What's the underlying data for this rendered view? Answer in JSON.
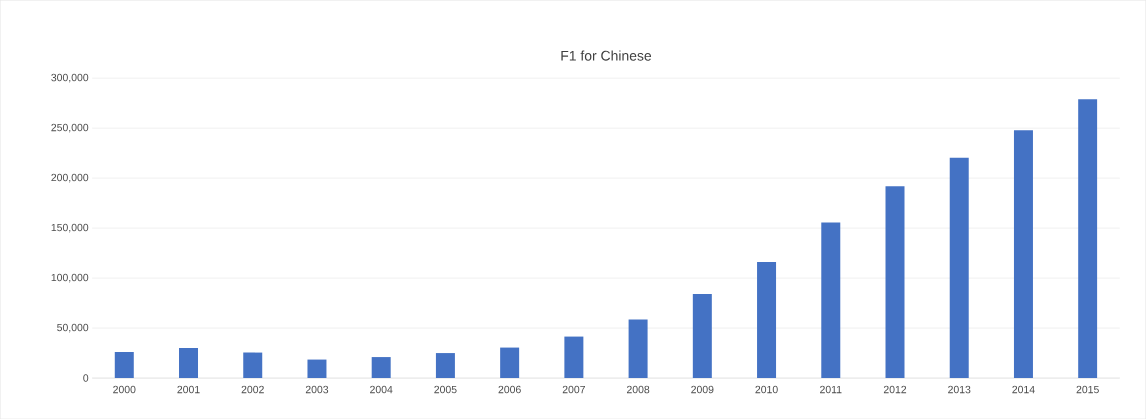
{
  "chart_data": {
    "type": "bar",
    "title": "F1 for Chinese",
    "categories": [
      "2000",
      "2001",
      "2002",
      "2003",
      "2004",
      "2005",
      "2006",
      "2007",
      "2008",
      "2009",
      "2010",
      "2011",
      "2012",
      "2013",
      "2014",
      "2015"
    ],
    "values": [
      26000,
      30000,
      25500,
      18500,
      21000,
      25000,
      30500,
      41500,
      58500,
      84000,
      116000,
      155500,
      192000,
      220500,
      248000,
      279000
    ],
    "color": "#4472c4",
    "ylim": [
      0,
      300000
    ],
    "yticks": [
      {
        "value": 0,
        "label": "0"
      },
      {
        "value": 50000,
        "label": "50,000"
      },
      {
        "value": 100000,
        "label": "100,000"
      },
      {
        "value": 150000,
        "label": "150,000"
      },
      {
        "value": 200000,
        "label": "200,000"
      },
      {
        "value": 250000,
        "label": "250,000"
      },
      {
        "value": 300000,
        "label": "300,000"
      }
    ],
    "grid": "y"
  }
}
